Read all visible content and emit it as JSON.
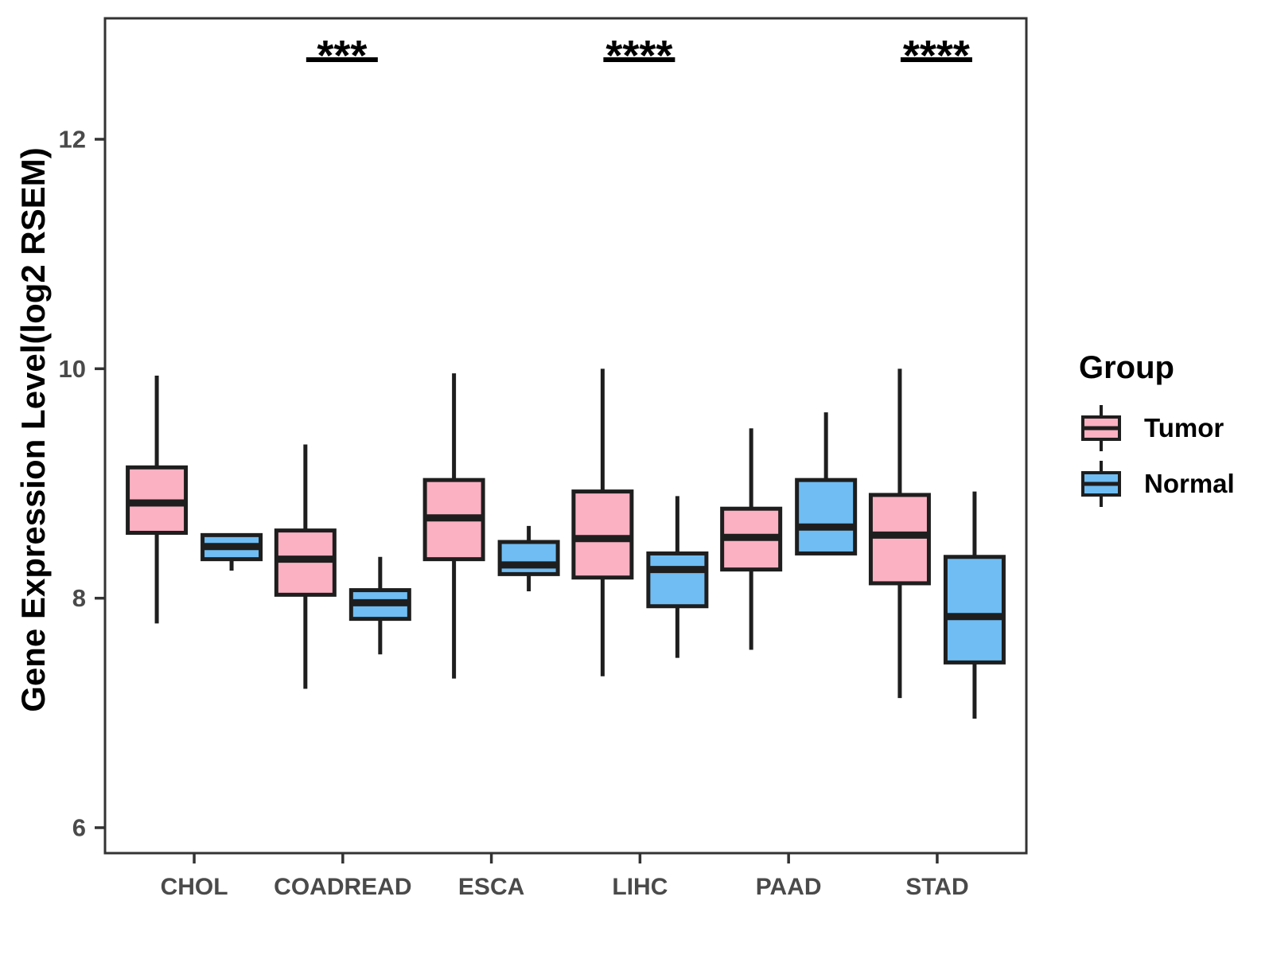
{
  "chart_data": {
    "type": "boxplot",
    "ylabel": "Gene Expression Level(log2 RSEM)",
    "categories": [
      "CHOL",
      "COADREAD",
      "ESCA",
      "LIHC",
      "PAAD",
      "STAD"
    ],
    "yticks": [
      6,
      8,
      10,
      12
    ],
    "ylim": [
      5.78,
      13.05
    ],
    "grid": false,
    "legend_position": "right",
    "legend_title": "Group",
    "series": [
      {
        "name": "Tumor",
        "color": "#FBB1C2",
        "boxes": [
          {
            "category": "CHOL",
            "low": 7.78,
            "q1": 8.57,
            "median": 8.83,
            "q3": 9.14,
            "high": 9.94
          },
          {
            "category": "COADREAD",
            "low": 7.21,
            "q1": 8.03,
            "median": 8.34,
            "q3": 8.59,
            "high": 9.34
          },
          {
            "category": "ESCA",
            "low": 7.3,
            "q1": 8.34,
            "median": 8.7,
            "q3": 9.03,
            "high": 9.96
          },
          {
            "category": "LIHC",
            "low": 7.32,
            "q1": 8.18,
            "median": 8.52,
            "q3": 8.93,
            "high": 10.0
          },
          {
            "category": "PAAD",
            "low": 7.55,
            "q1": 8.25,
            "median": 8.53,
            "q3": 8.78,
            "high": 9.48
          },
          {
            "category": "STAD",
            "low": 7.13,
            "q1": 8.13,
            "median": 8.55,
            "q3": 8.9,
            "high": 10.0
          }
        ]
      },
      {
        "name": "Normal",
        "color": "#6FBDF3",
        "boxes": [
          {
            "category": "CHOL",
            "low": 8.24,
            "q1": 8.34,
            "median": 8.45,
            "q3": 8.55,
            "high": 8.55
          },
          {
            "category": "COADREAD",
            "low": 7.51,
            "q1": 7.82,
            "median": 7.96,
            "q3": 8.07,
            "high": 8.36
          },
          {
            "category": "ESCA",
            "low": 8.06,
            "q1": 8.21,
            "median": 8.29,
            "q3": 8.49,
            "high": 8.63
          },
          {
            "category": "LIHC",
            "low": 7.48,
            "q1": 7.93,
            "median": 8.25,
            "q3": 8.39,
            "high": 8.89
          },
          {
            "category": "PAAD",
            "low": 8.39,
            "q1": 8.39,
            "median": 8.62,
            "q3": 9.03,
            "high": 9.62
          },
          {
            "category": "STAD",
            "low": 6.95,
            "q1": 7.44,
            "median": 7.84,
            "q3": 8.36,
            "high": 8.93
          }
        ]
      }
    ],
    "significance": [
      {
        "category": "COADREAD",
        "label": "***"
      },
      {
        "category": "LIHC",
        "label": "****"
      },
      {
        "category": "STAD",
        "label": "****"
      }
    ],
    "colors": {
      "box_line": "#1e1e1e",
      "axis_line": "#333333",
      "axis_text": "#4a4a4a",
      "sig_text": "#000000"
    }
  }
}
